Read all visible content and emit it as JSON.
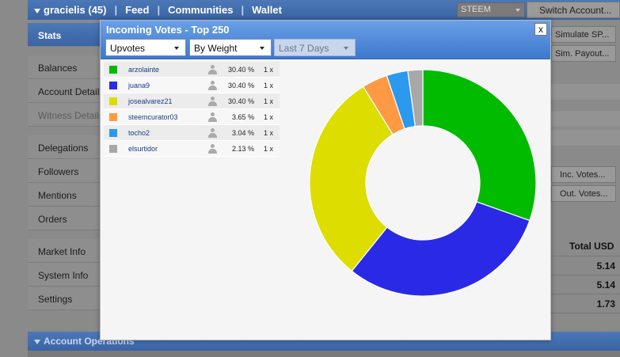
{
  "topbar": {
    "username": "gracielis (45)",
    "nav": [
      "Feed",
      "Communities",
      "Wallet"
    ],
    "separator": "|",
    "currency_select": "STEEM",
    "switch_account": "Switch Account..."
  },
  "sidebar": {
    "items": [
      {
        "label": "Stats",
        "state": "active"
      },
      {
        "label": "Balances",
        "state": "normal"
      },
      {
        "label": "Account Details",
        "state": "normal"
      },
      {
        "label": "Witness Details",
        "state": "disabled"
      },
      {
        "label": "Delegations",
        "state": "normal"
      },
      {
        "label": "Followers",
        "state": "normal"
      },
      {
        "label": "Mentions",
        "state": "normal"
      },
      {
        "label": "Orders",
        "state": "normal"
      },
      {
        "label": "Market Info",
        "state": "normal"
      },
      {
        "label": "System Info",
        "state": "normal"
      },
      {
        "label": "Settings",
        "state": "normal"
      }
    ]
  },
  "right_panel": {
    "simulate_sp": "Simulate SP...",
    "sim_payout": "Sim. Payout...",
    "inc_votes": "Inc. Votes...",
    "out_votes": "Out. Votes...",
    "total_header": "Total USD",
    "totals": [
      "5.14",
      "5.14",
      "1.73"
    ]
  },
  "account_operations": "Account Operations",
  "modal": {
    "title": "Incoming Votes - Top 250",
    "close": "x",
    "dropdown_type": "Upvotes",
    "dropdown_sort": "By Weight",
    "dropdown_period": "Last 7 Days",
    "rows": [
      {
        "name": "arzolainte",
        "color": "#00bb00",
        "percent": "30.40 %",
        "count": "1 x"
      },
      {
        "name": "juana9",
        "color": "#2a2ae6",
        "percent": "30.40 %",
        "count": "1 x"
      },
      {
        "name": "josealvarez21",
        "color": "#dddd00",
        "percent": "30.40 %",
        "count": "1 x"
      },
      {
        "name": "steemcurator03",
        "color": "#ff9944",
        "percent": "3.65 %",
        "count": "1 x"
      },
      {
        "name": "tocho2",
        "color": "#2a99ee",
        "percent": "3.04 %",
        "count": "1 x"
      },
      {
        "name": "elsurtidor",
        "color": "#a8a8a8",
        "percent": "2.13 %",
        "count": "1 x"
      }
    ]
  },
  "chart_data": {
    "type": "pie",
    "style": "donut",
    "categories": [
      "arzolainte",
      "juana9",
      "josealvarez21",
      "steemcurator03",
      "tocho2",
      "elsurtidor"
    ],
    "values": [
      30.4,
      30.4,
      30.4,
      3.65,
      3.04,
      2.13
    ],
    "colors": [
      "#00bb00",
      "#2a2ae6",
      "#dddd00",
      "#ff9944",
      "#2a99ee",
      "#a8a8a8"
    ],
    "start": "top",
    "direction": "clockwise"
  }
}
